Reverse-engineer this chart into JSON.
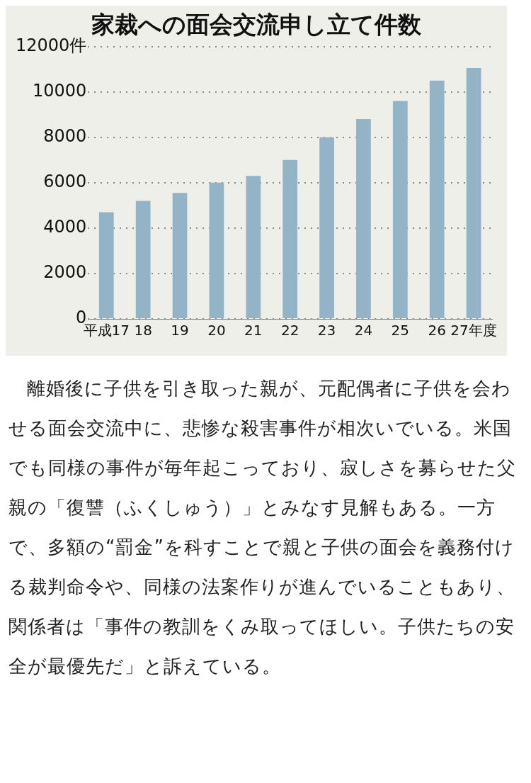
{
  "chart_data": {
    "type": "bar",
    "title": "家裁への面会交流申し立て件数",
    "categories": [
      "平成17",
      "18",
      "19",
      "20",
      "21",
      "22",
      "23",
      "24",
      "25",
      "26",
      "27年度"
    ],
    "values": [
      4700,
      5200,
      5550,
      6000,
      6300,
      7000,
      8000,
      8800,
      9600,
      10500,
      11050
    ],
    "color": "#93b3c6",
    "ylim": [
      0,
      12000
    ],
    "yticks": [
      0,
      2000,
      4000,
      6000,
      8000,
      10000,
      {
        "value": 12000,
        "label": "12000件"
      }
    ],
    "grid": "y",
    "annotations": [
      "離婚後に子供を引き取った親が、元配偶者に子供を会わせる面会交流中に、悲惨な殺害事件が相次いでいる。米国でも同様の事件が毎年起こっており、寂しさを募らせた父親の「復讐（ふくしゅう）」とみなす見解もある。一方で、多額の“罰金”を科すことで親と子供の面会を義務付ける裁判命令や、同様の法案作りが進んでいることもあり、関係者は「事件の教訓をくみ取ってほしい。子供たちの安全が最優先だ」と訴えている。"
    ]
  }
}
